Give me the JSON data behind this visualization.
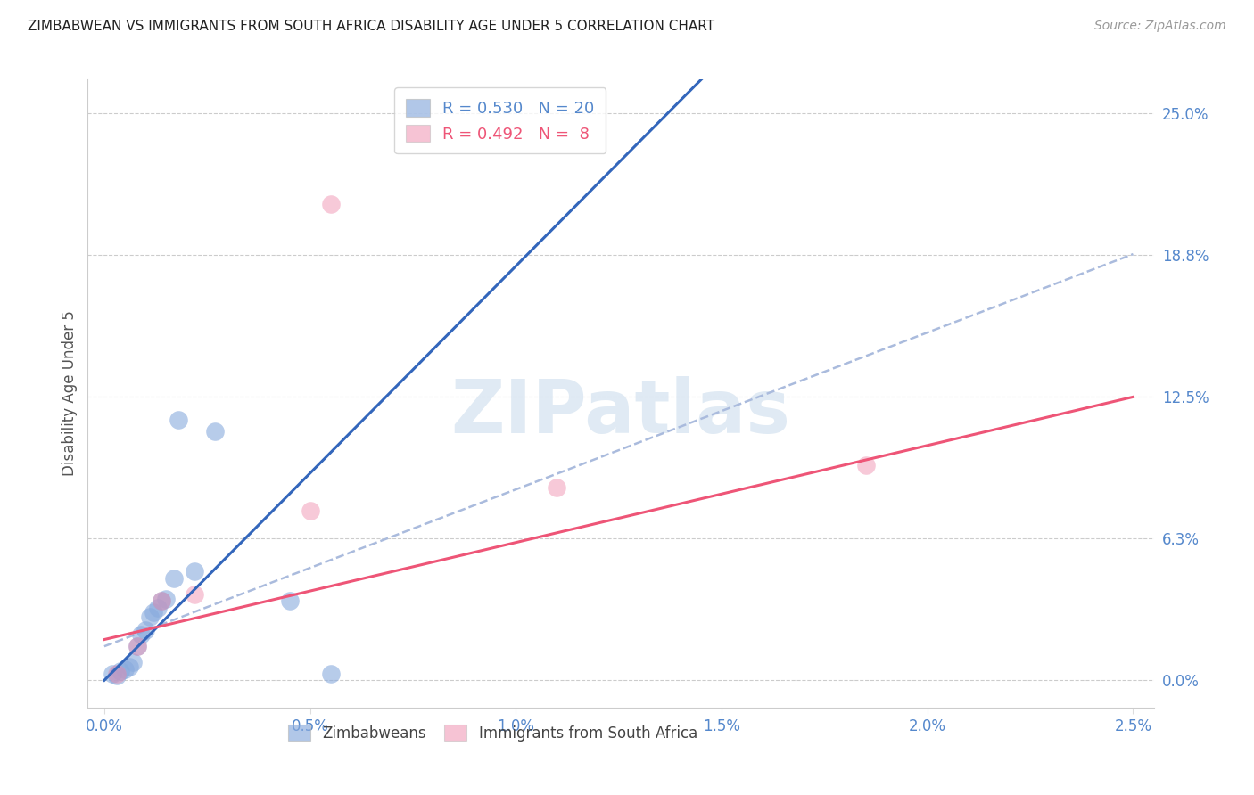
{
  "title": "ZIMBABWEAN VS IMMIGRANTS FROM SOUTH AFRICA DISABILITY AGE UNDER 5 CORRELATION CHART",
  "source": "Source: ZipAtlas.com",
  "ylabel": "Disability Age Under 5",
  "background_color": "#ffffff",
  "watermark_text": "ZIPatlas",
  "legend_r1": "R = 0.530",
  "legend_n1": "N = 20",
  "legend_r2": "R = 0.492",
  "legend_n2": "N =  8",
  "blue_color": "#88aadd",
  "pink_color": "#ee88aa",
  "blue_line_color": "#3366bb",
  "pink_line_color": "#ee5577",
  "dashed_color": "#aabbdd",
  "right_tick_color": "#5588cc",
  "ytick_positions": [
    0.0,
    6.25,
    12.5,
    18.75,
    25.0
  ],
  "ytick_labels_right": [
    "0.0%",
    "6.3%",
    "12.5%",
    "18.8%",
    "25.0%"
  ],
  "xtick_vals": [
    0.0,
    0.5,
    1.0,
    1.5,
    2.0,
    2.5
  ],
  "xtick_labels": [
    "0.0%",
    "0.5%",
    "1.0%",
    "1.5%",
    "2.0%",
    "2.5%"
  ],
  "xlim": [
    -0.04,
    2.55
  ],
  "ylim": [
    -1.2,
    26.5
  ],
  "blue_x": [
    0.02,
    0.03,
    0.04,
    0.05,
    0.06,
    0.07,
    0.08,
    0.09,
    0.1,
    0.11,
    0.12,
    0.13,
    0.14,
    0.15,
    0.17,
    0.18,
    0.22,
    0.27,
    0.45,
    0.55
  ],
  "blue_y": [
    0.3,
    0.2,
    0.4,
    0.5,
    0.6,
    0.8,
    1.5,
    2.0,
    2.2,
    2.8,
    3.0,
    3.2,
    3.5,
    3.6,
    4.5,
    11.5,
    4.8,
    11.0,
    3.5,
    0.3
  ],
  "pink_x": [
    0.03,
    0.08,
    0.14,
    0.22,
    0.5,
    0.55,
    1.1,
    1.85
  ],
  "pink_y": [
    0.3,
    1.5,
    3.5,
    3.8,
    7.5,
    21.0,
    8.5,
    9.5
  ],
  "blue_reg_x0": 0.0,
  "blue_reg_y0": 0.0,
  "blue_reg_x1": 0.52,
  "blue_reg_y1": 9.5,
  "dashed_x0": 0.0,
  "dashed_y0": 1.5,
  "dashed_x1": 2.5,
  "dashed_y1": 18.8,
  "pink_x0": 0.0,
  "pink_y0": 1.8,
  "pink_x1": 2.5,
  "pink_y1": 12.5
}
